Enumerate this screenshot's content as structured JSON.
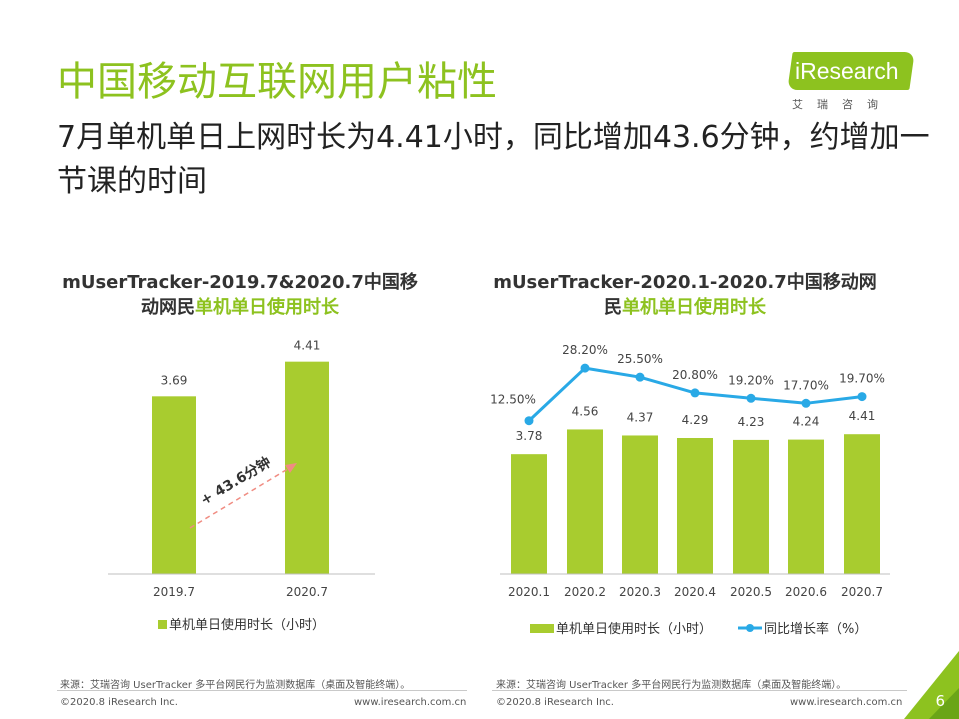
{
  "page": {
    "title": "中国移动互联网用户粘性",
    "subtitle": "7月单机单日上网时长为4.41小时，同比增加43.6分钟，约增加一节课的时间",
    "page_number": "6"
  },
  "logo": {
    "name": "iResearch",
    "sub": "艾瑞咨询"
  },
  "colors": {
    "accent": "#8dc21f",
    "bar": "#a8cc2f",
    "line": "#29a9e6",
    "arrow": "#f08c82"
  },
  "left_chart": {
    "title_plain": "mUserTracker-2019.7&2020.7中国移动网民",
    "title_highlight": "单机单日使用时长",
    "annotation": "+ 43.6分钟",
    "legend": "单机单日使用时长（小时）",
    "source": "来源：艾瑞咨询 UserTracker 多平台网民行为监测数据库（桌面及智能终端）。",
    "copyright": "©2020.8 iResearch Inc.",
    "url": "www.iresearch.com.cn"
  },
  "right_chart": {
    "title_plain": "mUserTracker-2020.1-2020.7中国移动网民",
    "title_highlight": "单机单日使用时长",
    "legend_bar": "单机单日使用时长（小时）",
    "legend_line": "同比增长率（%）",
    "source": "来源：艾瑞咨询 UserTracker 多平台网民行为监测数据库（桌面及智能终端）。",
    "copyright": "©2020.8 iResearch Inc.",
    "url": "www.iresearch.com.cn"
  },
  "chart_data": [
    {
      "type": "bar",
      "categories": [
        "2019.7",
        "2020.7"
      ],
      "series": [
        {
          "name": "单机单日使用时长（小时）",
          "values": [
            3.69,
            4.41
          ],
          "labels": [
            "3.69",
            "4.41"
          ]
        }
      ],
      "annotation": "+ 43.6分钟",
      "grid": false,
      "legend": "bottom"
    },
    {
      "type": "bar",
      "categories": [
        "2020.1",
        "2020.2",
        "2020.3",
        "2020.4",
        "2020.5",
        "2020.6",
        "2020.7"
      ],
      "series": [
        {
          "name": "单机单日使用时长（小时）",
          "type": "bar",
          "values": [
            3.78,
            4.56,
            4.37,
            4.29,
            4.23,
            4.24,
            4.41
          ],
          "labels": [
            "3.78",
            "4.56",
            "4.37",
            "4.29",
            "4.23",
            "4.24",
            "4.41"
          ]
        },
        {
          "name": "同比增长率（%）",
          "type": "line",
          "values": [
            12.5,
            28.2,
            25.5,
            20.8,
            19.2,
            17.7,
            19.7
          ],
          "labels": [
            "12.50%",
            "28.20%",
            "25.50%",
            "20.80%",
            "19.20%",
            "17.70%",
            "19.70%"
          ]
        }
      ],
      "grid": false,
      "legend": "bottom"
    }
  ]
}
